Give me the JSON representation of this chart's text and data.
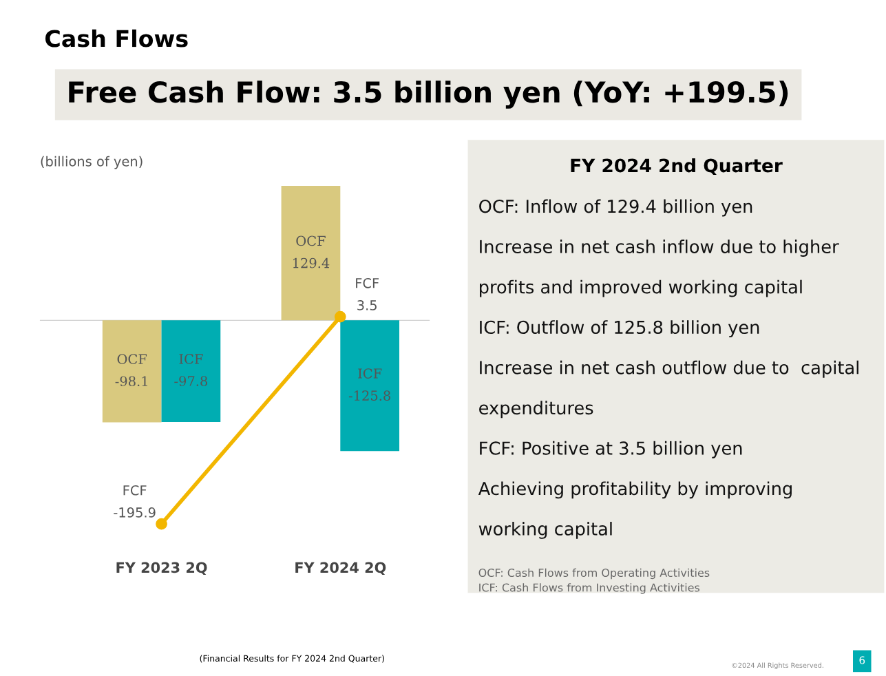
{
  "chart_data": [
    {
      "type": "bar",
      "title": "Cash Flows",
      "subtitle": "Free Cash Flow: 3.5 billion yen (YoY: +199.5)",
      "ylabel": "(billions of yen)",
      "categories": [
        "FY 2023 2Q",
        "FY 2024 2Q"
      ],
      "series": [
        {
          "name": "OCF",
          "color": "#d9c97f",
          "values": [
            -98.1,
            129.4
          ]
        },
        {
          "name": "ICF",
          "color": "#00adb2",
          "values": [
            -97.8,
            -125.8
          ]
        },
        {
          "name": "FCF",
          "type": "line",
          "color": "#f2b600",
          "marker": "circle",
          "values": [
            -195.9,
            3.5
          ]
        }
      ],
      "tick_labels": "x",
      "data_labels": true,
      "grid": false,
      "legend": false,
      "ref_lines": [
        {
          "axis": "y",
          "value": 0,
          "color": "#d0d0d0"
        }
      ],
      "annotations": [
        "(Financial Results for FY 2024 2nd Quarter)",
        "©2024 All Rights Reserved.",
        "6"
      ]
    },
    {
      "type": "other",
      "title": "FY 2024 2nd Quarter",
      "annotations": [
        "OCF: Inflow of 129.4 billion yen",
        "Increase in net cash inflow due to higher",
        "profits and improved working capital",
        "ICF: Outflow of 125.8 billion yen",
        "Increase in net cash outflow due to  capital",
        "expenditures",
        "FCF: Positive at 3.5 billion yen",
        "Achieving profitability by improving",
        "working capital",
        "OCF: Cash Flows from Operating Activities\nICF: Cash Flows from Investing Activities"
      ]
    }
  ]
}
